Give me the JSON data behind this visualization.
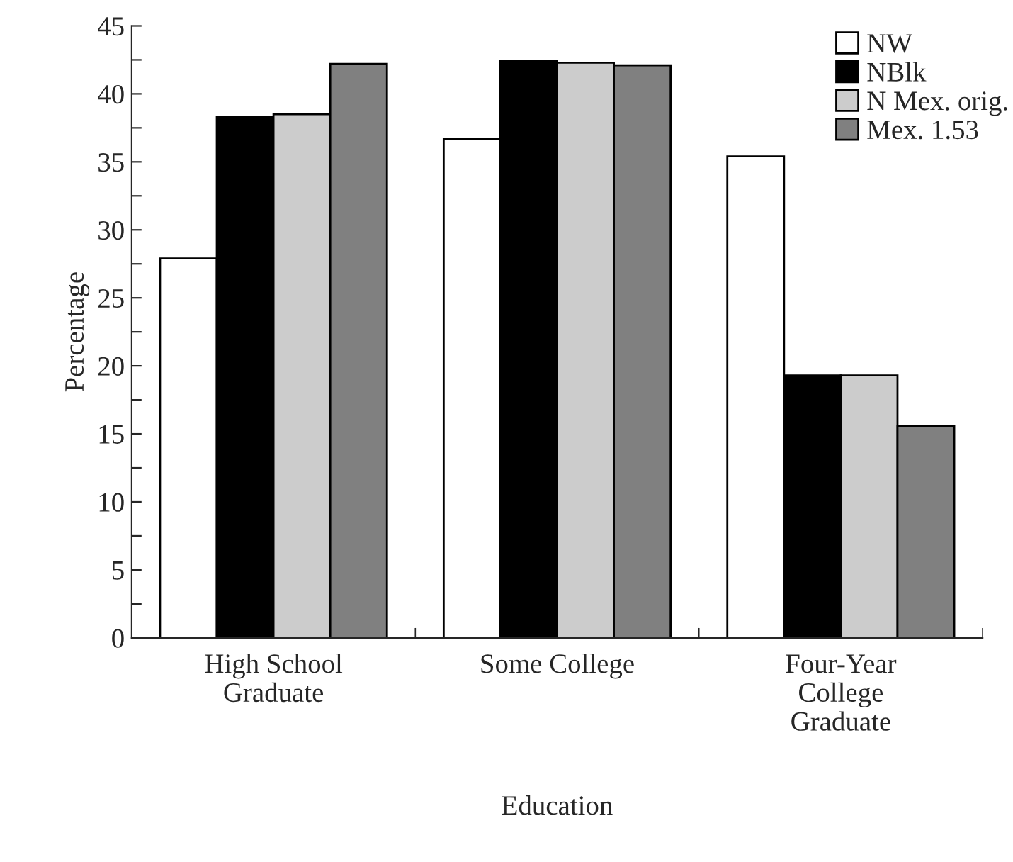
{
  "chart_data": {
    "type": "bar",
    "xlabel": "Education",
    "ylabel": "Percentage",
    "categories": [
      "High School\nGraduate",
      "Some College",
      "Four-Year\nCollege\nGraduate"
    ],
    "series": [
      {
        "name": "NW",
        "color": "#ffffff",
        "values": [
          27.9,
          36.7,
          35.4
        ]
      },
      {
        "name": "NBlk",
        "color": "#000000",
        "values": [
          38.3,
          42.4,
          19.3
        ]
      },
      {
        "name": "N Mex. orig.",
        "color": "#cccccc",
        "values": [
          38.5,
          42.3,
          19.3
        ]
      },
      {
        "name": "Mex. 1.53",
        "color": "#808080",
        "values": [
          42.2,
          42.1,
          15.6
        ]
      }
    ],
    "ylim": [
      0,
      45
    ],
    "yticks": [
      0,
      {
        "value": 2.5,
        "label": null
      },
      5,
      {
        "value": 7.5,
        "label": null
      },
      10,
      {
        "value": 12.5,
        "label": null
      },
      15,
      {
        "value": 17.5,
        "label": null
      },
      20,
      {
        "value": 22.5,
        "label": null
      },
      25,
      {
        "value": 27.5,
        "label": null
      },
      30,
      {
        "value": 32.5,
        "label": null
      },
      35,
      {
        "value": 37.5,
        "label": null
      },
      40,
      {
        "value": 42.5,
        "label": null
      },
      45
    ],
    "grid": false,
    "legend": "top right"
  }
}
